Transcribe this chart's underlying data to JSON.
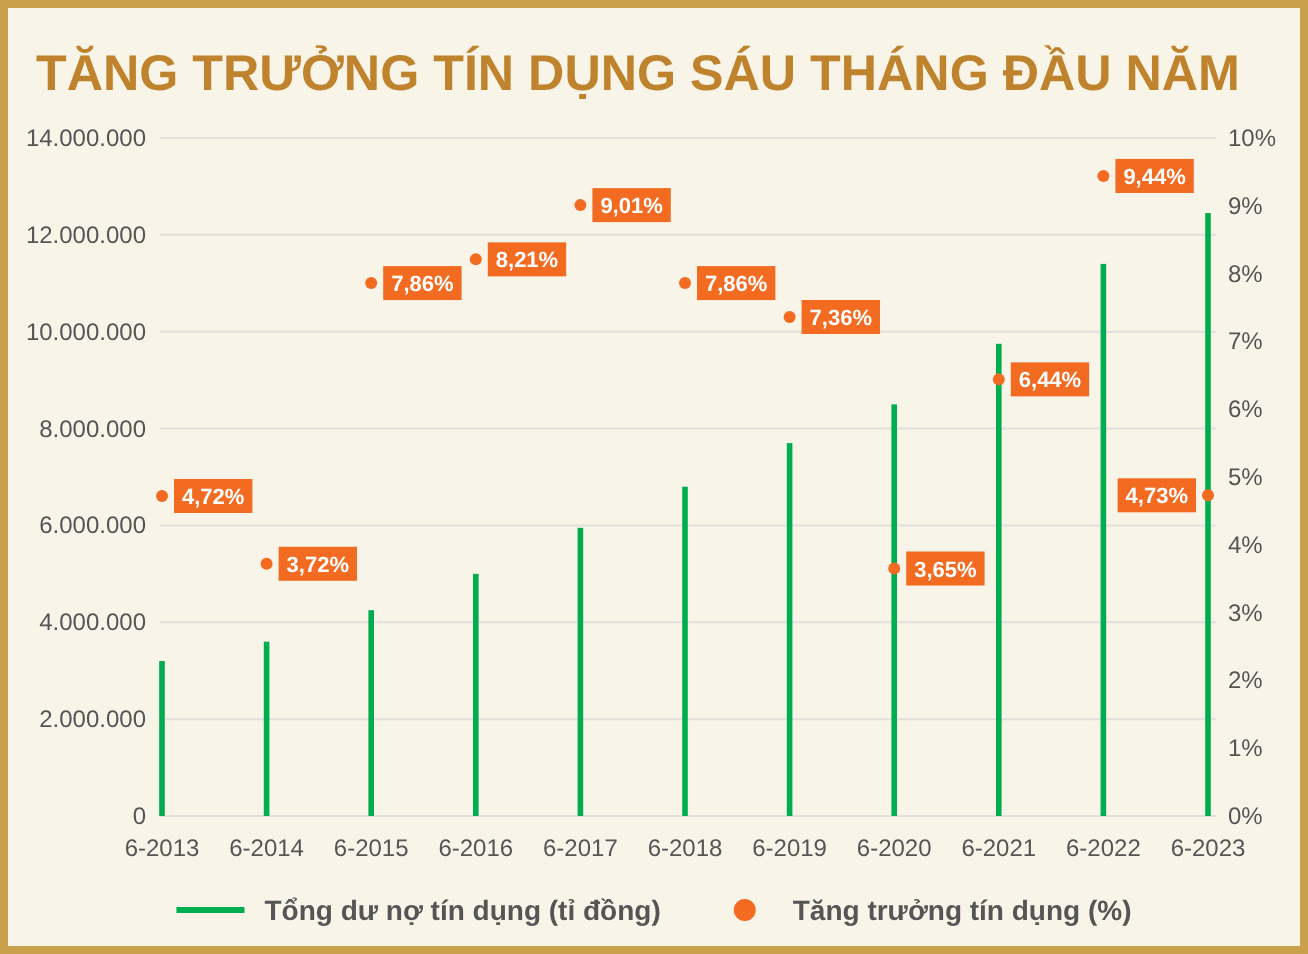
{
  "chart_data": {
    "type": "bar",
    "title": "TĂNG TRƯỞNG TÍN DỤNG SÁU THÁNG ĐẦU NĂM",
    "categories": [
      "6-2013",
      "6-2014",
      "6-2015",
      "6-2016",
      "6-2017",
      "6-2018",
      "6-2019",
      "6-2020",
      "6-2021",
      "6-2022",
      "6-2023"
    ],
    "series": [
      {
        "name": "Tổng dư nợ tín dụng (tỉ đồng)",
        "color": "#00ad4f",
        "values": [
          3200000,
          3600000,
          4250000,
          5000000,
          5950000,
          6800000,
          7700000,
          8500000,
          9750000,
          11400000,
          12450000
        ]
      },
      {
        "name": "Tăng trưởng tín dụng (%)",
        "type": "scatter",
        "axis": "y2",
        "color": "#f26b21",
        "values": [
          4.72,
          3.72,
          7.86,
          8.21,
          9.01,
          7.86,
          7.36,
          3.65,
          6.44,
          9.44,
          4.73
        ],
        "value_labels": [
          "4,72%",
          "3,72%",
          "7,86%",
          "8,21%",
          "9,01%",
          "7,86%",
          "7,36%",
          "3,65%",
          "6,44%",
          "9,44%",
          "4,73%"
        ]
      }
    ],
    "ylim": [
      0,
      14000000
    ],
    "yticks": [
      0,
      {
        "value": 2000000,
        "label": "2.000.000"
      },
      {
        "value": 4000000,
        "label": "4.000.000"
      },
      {
        "value": 6000000,
        "label": "6.000.000"
      },
      {
        "value": 8000000,
        "label": "8.000.000"
      },
      {
        "value": 10000000,
        "label": "10.000.000"
      },
      {
        "value": 12000000,
        "label": "12.000.000"
      },
      {
        "value": 14000000,
        "label": "14.000.000"
      }
    ],
    "y2lim": [
      0,
      10
    ],
    "y2ticks": [
      {
        "value": 0,
        "label": "0%"
      },
      {
        "value": 1,
        "label": "1%"
      },
      {
        "value": 2,
        "label": "2%"
      },
      {
        "value": 3,
        "label": "3%"
      },
      {
        "value": 4,
        "label": "4%"
      },
      {
        "value": 5,
        "label": "5%"
      },
      {
        "value": 6,
        "label": "6%"
      },
      {
        "value": 7,
        "label": "7%"
      },
      {
        "value": 8,
        "label": "8%"
      },
      {
        "value": 9,
        "label": "9%"
      },
      {
        "value": 10,
        "label": "10%"
      }
    ],
    "grid": "y",
    "legend": "bottom",
    "marker": "circle"
  }
}
